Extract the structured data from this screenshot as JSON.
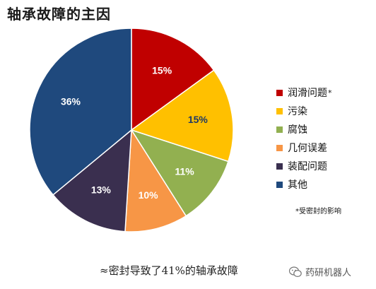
{
  "chart_data": {
    "type": "pie",
    "title": "轴承故障的主因",
    "slices": [
      {
        "label": "润滑问题",
        "value": 15,
        "value_label": "15%",
        "color": "#c00000",
        "text_color": "#ffffff",
        "legend_sup": "*"
      },
      {
        "label": "污染",
        "value": 15,
        "value_label": "15%",
        "color": "#ffc000",
        "text_color": "#1f3864"
      },
      {
        "label": "腐蚀",
        "value": 11,
        "value_label": "11%",
        "color": "#92b050",
        "text_color": "#ffffff"
      },
      {
        "label": "几何误差",
        "value": 10,
        "value_label": "10%",
        "color": "#f79646",
        "text_color": "#ffffff"
      },
      {
        "label": "装配问题",
        "value": 13,
        "value_label": "13%",
        "color": "#3a2f4f",
        "text_color": "#ffffff"
      },
      {
        "label": "其他",
        "value": 36,
        "value_label": "36%",
        "color": "#1f497d",
        "text_color": "#ffffff"
      }
    ],
    "legend_position": "right",
    "footnote": "*受密封的影响"
  },
  "caption": "≈密封导致了41%的轴承故障",
  "watermark": "药研机器人"
}
